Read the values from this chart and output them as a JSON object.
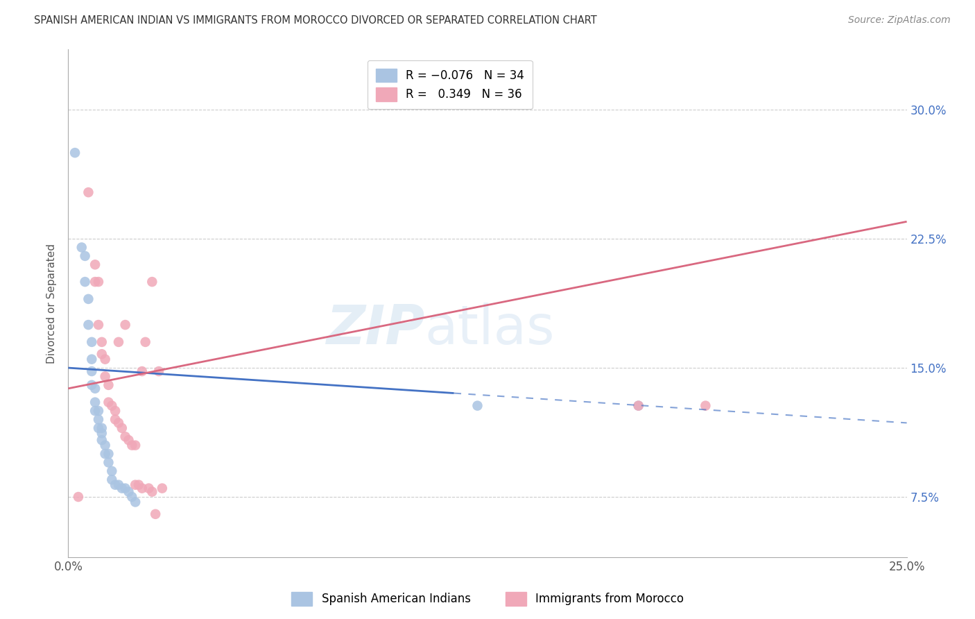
{
  "title": "SPANISH AMERICAN INDIAN VS IMMIGRANTS FROM MOROCCO DIVORCED OR SEPARATED CORRELATION CHART",
  "source": "Source: ZipAtlas.com",
  "ylabel": "Divorced or Separated",
  "ytick_values": [
    0.075,
    0.15,
    0.225,
    0.3
  ],
  "ytick_labels": [
    "7.5%",
    "15.0%",
    "22.5%",
    "30.0%"
  ],
  "xlim": [
    0.0,
    0.25
  ],
  "ylim": [
    0.04,
    0.335
  ],
  "legend1_label": "R = -0.076   N = 34",
  "legend2_label": "R =  0.349   N = 36",
  "legend1_color": "#aac4e2",
  "legend2_color": "#f0a8b8",
  "line1_color": "#4472c4",
  "line2_color": "#d96880",
  "series1_name": "Spanish American Indians",
  "series2_name": "Immigrants from Morocco",
  "blue_x": [
    0.002,
    0.004,
    0.005,
    0.005,
    0.006,
    0.006,
    0.007,
    0.007,
    0.007,
    0.007,
    0.008,
    0.008,
    0.008,
    0.009,
    0.009,
    0.009,
    0.01,
    0.01,
    0.01,
    0.011,
    0.011,
    0.012,
    0.012,
    0.013,
    0.013,
    0.014,
    0.015,
    0.016,
    0.017,
    0.018,
    0.019,
    0.02,
    0.122,
    0.17
  ],
  "blue_y": [
    0.275,
    0.22,
    0.215,
    0.2,
    0.19,
    0.175,
    0.165,
    0.155,
    0.148,
    0.14,
    0.138,
    0.13,
    0.125,
    0.125,
    0.12,
    0.115,
    0.115,
    0.112,
    0.108,
    0.105,
    0.1,
    0.1,
    0.095,
    0.09,
    0.085,
    0.082,
    0.082,
    0.08,
    0.08,
    0.078,
    0.075,
    0.072,
    0.128,
    0.128
  ],
  "pink_x": [
    0.003,
    0.006,
    0.008,
    0.008,
    0.009,
    0.009,
    0.01,
    0.01,
    0.011,
    0.011,
    0.012,
    0.012,
    0.013,
    0.014,
    0.014,
    0.015,
    0.015,
    0.016,
    0.017,
    0.017,
    0.018,
    0.019,
    0.02,
    0.02,
    0.021,
    0.022,
    0.022,
    0.023,
    0.024,
    0.025,
    0.025,
    0.026,
    0.027,
    0.028,
    0.17,
    0.19
  ],
  "pink_y": [
    0.075,
    0.252,
    0.21,
    0.2,
    0.2,
    0.175,
    0.165,
    0.158,
    0.155,
    0.145,
    0.14,
    0.13,
    0.128,
    0.125,
    0.12,
    0.118,
    0.165,
    0.115,
    0.11,
    0.175,
    0.108,
    0.105,
    0.105,
    0.082,
    0.082,
    0.08,
    0.148,
    0.165,
    0.08,
    0.078,
    0.2,
    0.065,
    0.148,
    0.08,
    0.128,
    0.128
  ],
  "blue_line_x0": 0.0,
  "blue_line_x_solid_end": 0.115,
  "blue_line_x1": 0.25,
  "blue_line_y_at_0": 0.15,
  "blue_line_y_at_25": 0.118,
  "pink_line_y_at_0": 0.138,
  "pink_line_y_at_25": 0.235
}
